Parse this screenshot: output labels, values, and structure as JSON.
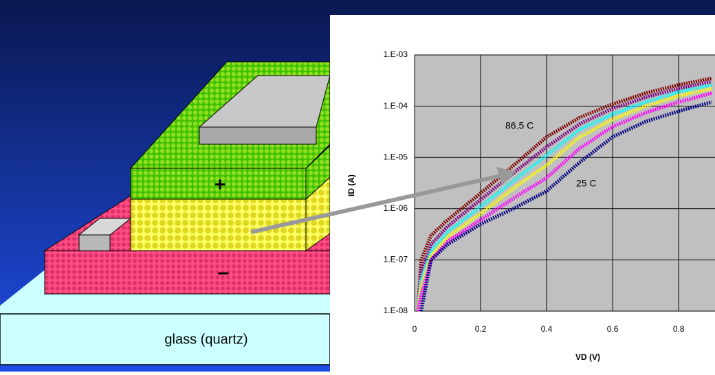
{
  "diagram": {
    "substrate_label": "glass (quartz)",
    "plus": "+",
    "minus": "–"
  },
  "chart_data": {
    "type": "line",
    "yscale": "log",
    "grid": true,
    "ylabel": "ID (A)",
    "xlabel": "VD (V)",
    "annotations": [
      "86.5 C",
      "25 C"
    ],
    "xlim": [
      0,
      0.91
    ],
    "xticks": [
      0,
      0.2,
      0.4,
      0.6,
      0.8
    ],
    "ylim": [
      1e-08,
      0.001
    ],
    "yticks": [
      {
        "value": 1e-08,
        "label": "1.E-08"
      },
      {
        "value": 1e-07,
        "label": "1.E-07"
      },
      {
        "value": 1e-06,
        "label": "1.E-06"
      },
      {
        "value": 1e-05,
        "label": "1.E-05"
      },
      {
        "value": 0.0001,
        "label": "1.E-04"
      },
      {
        "value": 0.001,
        "label": "1.E-03"
      }
    ],
    "x": [
      0.01,
      0.02,
      0.05,
      0.1,
      0.2,
      0.3,
      0.4,
      0.5,
      0.6,
      0.7,
      0.8,
      0.9
    ],
    "series": [
      {
        "color": "#800000",
        "values": [
          1e-08,
          1e-07,
          3e-07,
          6e-07,
          2e-06,
          7e-06,
          2.5e-05,
          6e-05,
          0.00011,
          0.00018,
          0.00026,
          0.00035
        ]
      },
      {
        "color": "#800080",
        "values": [
          1e-08,
          6e-08,
          2e-07,
          4.5e-07,
          1.5e-06,
          5e-06,
          1.6e-05,
          4.5e-05,
          9e-05,
          0.00015,
          0.00022,
          0.0003
        ]
      },
      {
        "color": "#00ffff",
        "values": [
          1e-08,
          4e-08,
          1.5e-07,
          3.5e-07,
          1.1e-06,
          3.5e-06,
          1.1e-05,
          3.5e-05,
          7e-05,
          0.00012,
          0.00019,
          0.00026
        ]
      },
      {
        "color": "#ffff00",
        "values": [
          1e-08,
          3e-08,
          1.2e-07,
          2.8e-07,
          8e-07,
          2.5e-06,
          7e-06,
          2.5e-05,
          5.5e-05,
          0.0001,
          0.00016,
          0.00022
        ]
      },
      {
        "color": "#ff00ff",
        "values": [
          1e-08,
          2e-08,
          1e-07,
          2.3e-07,
          6e-07,
          1.6e-06,
          4e-06,
          1.5e-05,
          4e-05,
          7.5e-05,
          0.00012,
          0.00018
        ]
      },
      {
        "color": "#000080",
        "values": [
          null,
          1e-08,
          1e-07,
          2e-07,
          5e-07,
          1e-06,
          2.2e-06,
          8e-06,
          2.5e-05,
          5e-05,
          8e-05,
          0.00012
        ]
      }
    ]
  }
}
